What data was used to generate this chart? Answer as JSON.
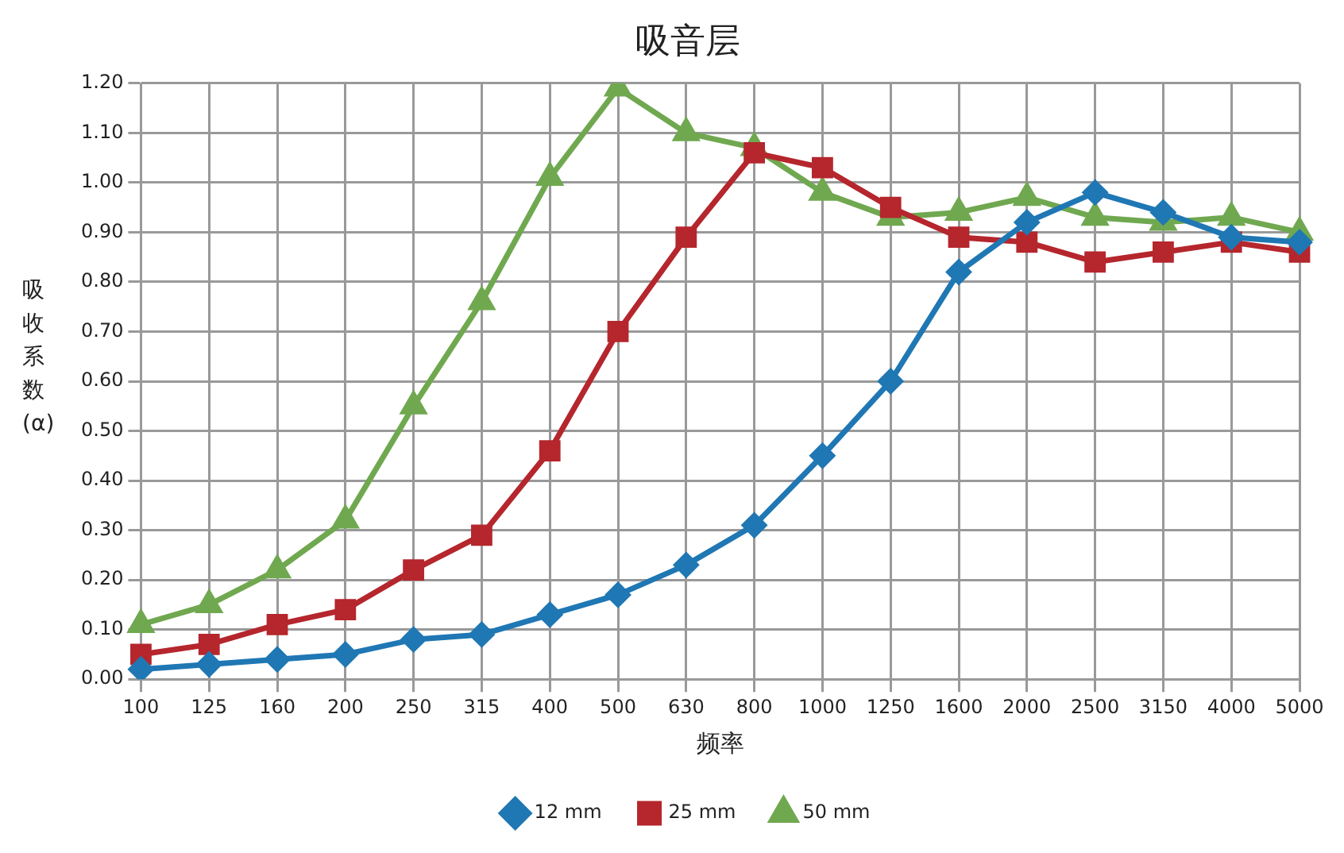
{
  "chart_data": {
    "type": "line",
    "title": "吸音层",
    "xlabel": "频率",
    "ylabel": "吸收系数(α)",
    "categories": [
      "100",
      "125",
      "160",
      "200",
      "250",
      "315",
      "400",
      "500",
      "630",
      "800",
      "1000",
      "1250",
      "1600",
      "2000",
      "2500",
      "3150",
      "4000",
      "5000"
    ],
    "series": [
      {
        "name": "12 mm",
        "color": "#1f77b4",
        "marker": "diamond",
        "values": [
          0.02,
          0.03,
          0.04,
          0.05,
          0.08,
          0.09,
          0.13,
          0.17,
          0.23,
          0.31,
          0.45,
          0.6,
          0.82,
          0.92,
          0.98,
          0.94,
          0.89,
          0.88
        ]
      },
      {
        "name": "25 mm",
        "color": "#b5262d",
        "marker": "square",
        "values": [
          0.05,
          0.07,
          0.11,
          0.14,
          0.22,
          0.29,
          0.46,
          0.7,
          0.89,
          1.06,
          1.03,
          0.95,
          0.89,
          0.88,
          0.84,
          0.86,
          0.88,
          0.86
        ]
      },
      {
        "name": "50 mm",
        "color": "#70a850",
        "marker": "triangle",
        "values": [
          0.11,
          0.15,
          0.22,
          0.32,
          0.55,
          0.76,
          1.01,
          1.19,
          1.1,
          1.07,
          0.98,
          0.93,
          0.94,
          0.97,
          0.93,
          0.92,
          0.93,
          0.9
        ]
      }
    ],
    "ylim": [
      0,
      1.2
    ],
    "yticks": [
      {
        "value": 0,
        "label": "0.00"
      },
      {
        "value": 0.1,
        "label": "0.10"
      },
      {
        "value": 0.2,
        "label": "0.20"
      },
      {
        "value": 0.3,
        "label": "0.30"
      },
      {
        "value": 0.4,
        "label": "0.40"
      },
      {
        "value": 0.5,
        "label": "0.50"
      },
      {
        "value": 0.6,
        "label": "0.60"
      },
      {
        "value": 0.7,
        "label": "0.70"
      },
      {
        "value": 0.8,
        "label": "0.80"
      },
      {
        "value": 0.9,
        "label": "0.90"
      },
      {
        "value": 1.0,
        "label": "1.00"
      },
      {
        "value": 1.1,
        "label": "1.10"
      },
      {
        "value": 1.2,
        "label": "1.20"
      }
    ],
    "grid": true,
    "legend": "bottom",
    "line_style": "solid"
  }
}
